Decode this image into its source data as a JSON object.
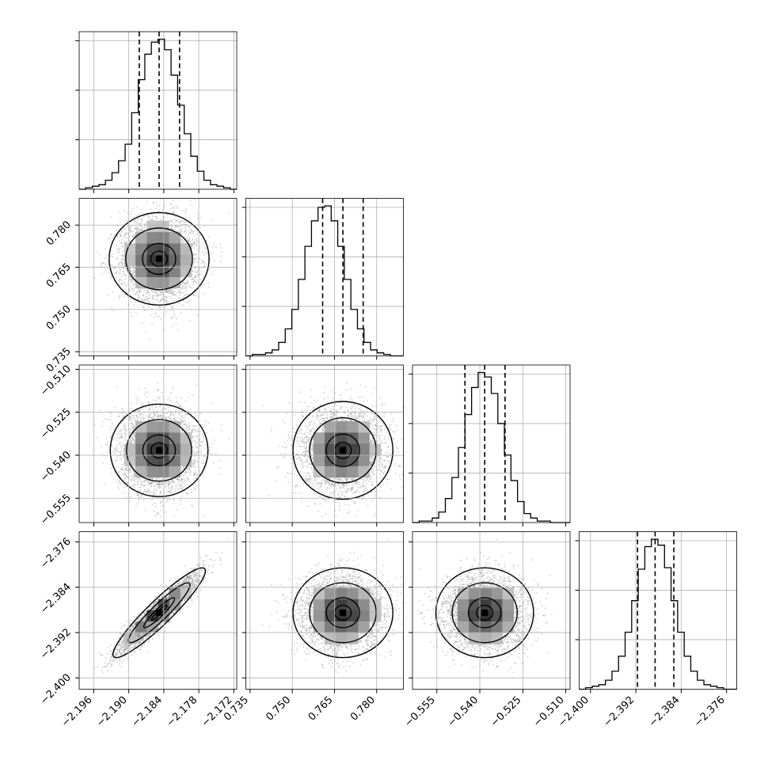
{
  "chart_data": {
    "type": "corner",
    "parameters": [
      {
        "ticks": [
          -2.196,
          -2.19,
          -2.184,
          -2.178,
          -2.172
        ],
        "tick_labels": [
          "−2.196",
          "−2.190",
          "−2.184",
          "−2.178",
          "−2.172"
        ],
        "range": [
          -2.1985,
          -2.1715
        ],
        "mean": -2.1848,
        "sd": 0.0033,
        "quantiles": [
          -2.1882,
          -2.1848,
          -2.1813
        ]
      },
      {
        "ticks": [
          0.735,
          0.75,
          0.765,
          0.78
        ],
        "tick_labels": [
          "0.735",
          "0.750",
          "0.765",
          "0.780"
        ],
        "range": [
          0.7335,
          0.7895
        ],
        "mean": 0.768,
        "sd": 0.0074,
        "quantiles": [
          0.7608,
          0.768,
          0.7752
        ]
      },
      {
        "ticks": [
          -0.555,
          -0.54,
          -0.525,
          -0.51
        ],
        "tick_labels": [
          "−0.555",
          "−0.540",
          "−0.525",
          "−0.510"
        ],
        "range": [
          -0.5635,
          -0.5085
        ],
        "mean": -0.5383,
        "sd": 0.0071,
        "quantiles": [
          -0.5452,
          -0.5383,
          -0.5312
        ]
      },
      {
        "ticks": [
          -2.4,
          -2.392,
          -2.384,
          -2.376
        ],
        "tick_labels": [
          "−2.400",
          "−2.392",
          "−2.384",
          "−2.376"
        ],
        "range": [
          -2.402,
          -2.3742
        ],
        "mean": -2.3885,
        "sd": 0.0033,
        "quantiles": [
          -2.3917,
          -2.3886,
          -2.3853
        ]
      }
    ],
    "correlations": [
      [
        1,
        0,
        0,
        0.93
      ],
      [
        0,
        1,
        0,
        0
      ],
      [
        0,
        0,
        1,
        0
      ],
      [
        0.93,
        0,
        0,
        1
      ]
    ],
    "histograms": [
      [
        0,
        1,
        2,
        3,
        6,
        11,
        19,
        30,
        51,
        73,
        90,
        98,
        100,
        93,
        76,
        56,
        37,
        22,
        12,
        6,
        3,
        2,
        1,
        0
      ],
      [
        0,
        1,
        1,
        2,
        4,
        9,
        18,
        31,
        51,
        73,
        90,
        99,
        100,
        90,
        73,
        51,
        31,
        18,
        9,
        4,
        2,
        1,
        0,
        0
      ],
      [
        0,
        1,
        1,
        3,
        7,
        16,
        30,
        50,
        72,
        90,
        100,
        97,
        86,
        66,
        45,
        28,
        14,
        6,
        3,
        1,
        1,
        0,
        0,
        0
      ],
      [
        0,
        1,
        2,
        3,
        6,
        12,
        22,
        38,
        59,
        80,
        95,
        100,
        96,
        81,
        59,
        38,
        22,
        12,
        6,
        3,
        2,
        1,
        0,
        0
      ]
    ],
    "grid": true,
    "quantile_lines": "dashed",
    "contour_levels": 4
  }
}
